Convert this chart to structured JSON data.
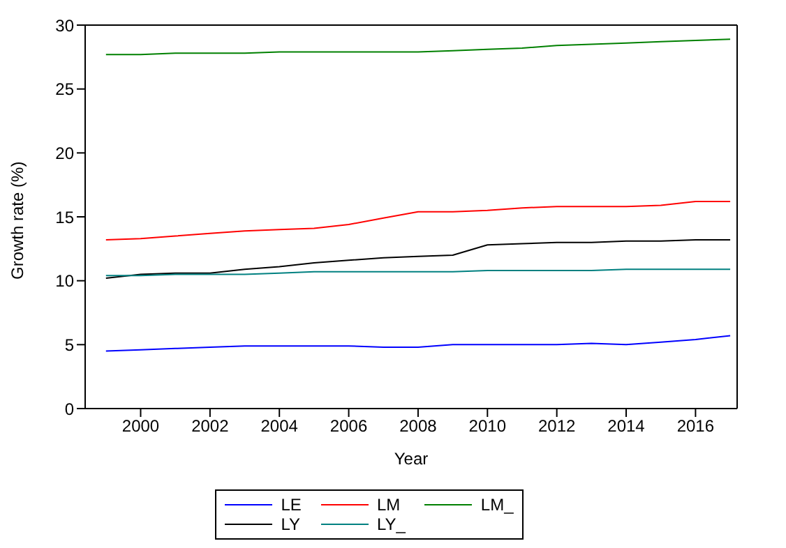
{
  "chart_data": {
    "type": "line",
    "xlabel": "Year",
    "ylabel": "Growth rate (%)",
    "x": [
      1999,
      2000,
      2001,
      2002,
      2003,
      2004,
      2005,
      2006,
      2007,
      2008,
      2009,
      2010,
      2011,
      2012,
      2013,
      2014,
      2015,
      2016,
      2017
    ],
    "xlim": [
      1998.4,
      2017.2
    ],
    "xticks": [
      2000,
      2002,
      2004,
      2006,
      2008,
      2010,
      2012,
      2014,
      2016
    ],
    "ylim": [
      0,
      30
    ],
    "yticks": [
      0,
      5,
      10,
      15,
      20,
      25,
      30
    ],
    "series": [
      {
        "name": "LE",
        "color": "#0000ff",
        "values": [
          4.5,
          4.6,
          4.7,
          4.8,
          4.9,
          4.9,
          4.9,
          4.9,
          4.8,
          4.8,
          5.0,
          5.0,
          5.0,
          5.0,
          5.1,
          5.0,
          5.2,
          5.4,
          5.7
        ]
      },
      {
        "name": "LM",
        "color": "#ff0000",
        "values": [
          13.2,
          13.3,
          13.5,
          13.7,
          13.9,
          14.0,
          14.1,
          14.4,
          14.9,
          15.4,
          15.4,
          15.5,
          15.7,
          15.8,
          15.8,
          15.8,
          15.9,
          16.2,
          16.2
        ]
      },
      {
        "name": "LM_",
        "color": "#008000",
        "values": [
          27.7,
          27.7,
          27.8,
          27.8,
          27.8,
          27.9,
          27.9,
          27.9,
          27.9,
          27.9,
          28.0,
          28.1,
          28.2,
          28.4,
          28.5,
          28.6,
          28.7,
          28.8,
          28.9
        ]
      },
      {
        "name": "LY",
        "color": "#000000",
        "values": [
          10.2,
          10.5,
          10.6,
          10.6,
          10.9,
          11.1,
          11.4,
          11.6,
          11.8,
          11.9,
          12.0,
          12.8,
          12.9,
          13.0,
          13.0,
          13.1,
          13.1,
          13.2,
          13.2
        ]
      },
      {
        "name": "LY_",
        "color": "#008080",
        "values": [
          10.4,
          10.4,
          10.5,
          10.5,
          10.5,
          10.6,
          10.7,
          10.7,
          10.7,
          10.7,
          10.7,
          10.8,
          10.8,
          10.8,
          10.8,
          10.9,
          10.9,
          10.9,
          10.9
        ]
      }
    ],
    "grid": false,
    "legend": "bottom",
    "marker": "none",
    "line_style": "solid"
  }
}
